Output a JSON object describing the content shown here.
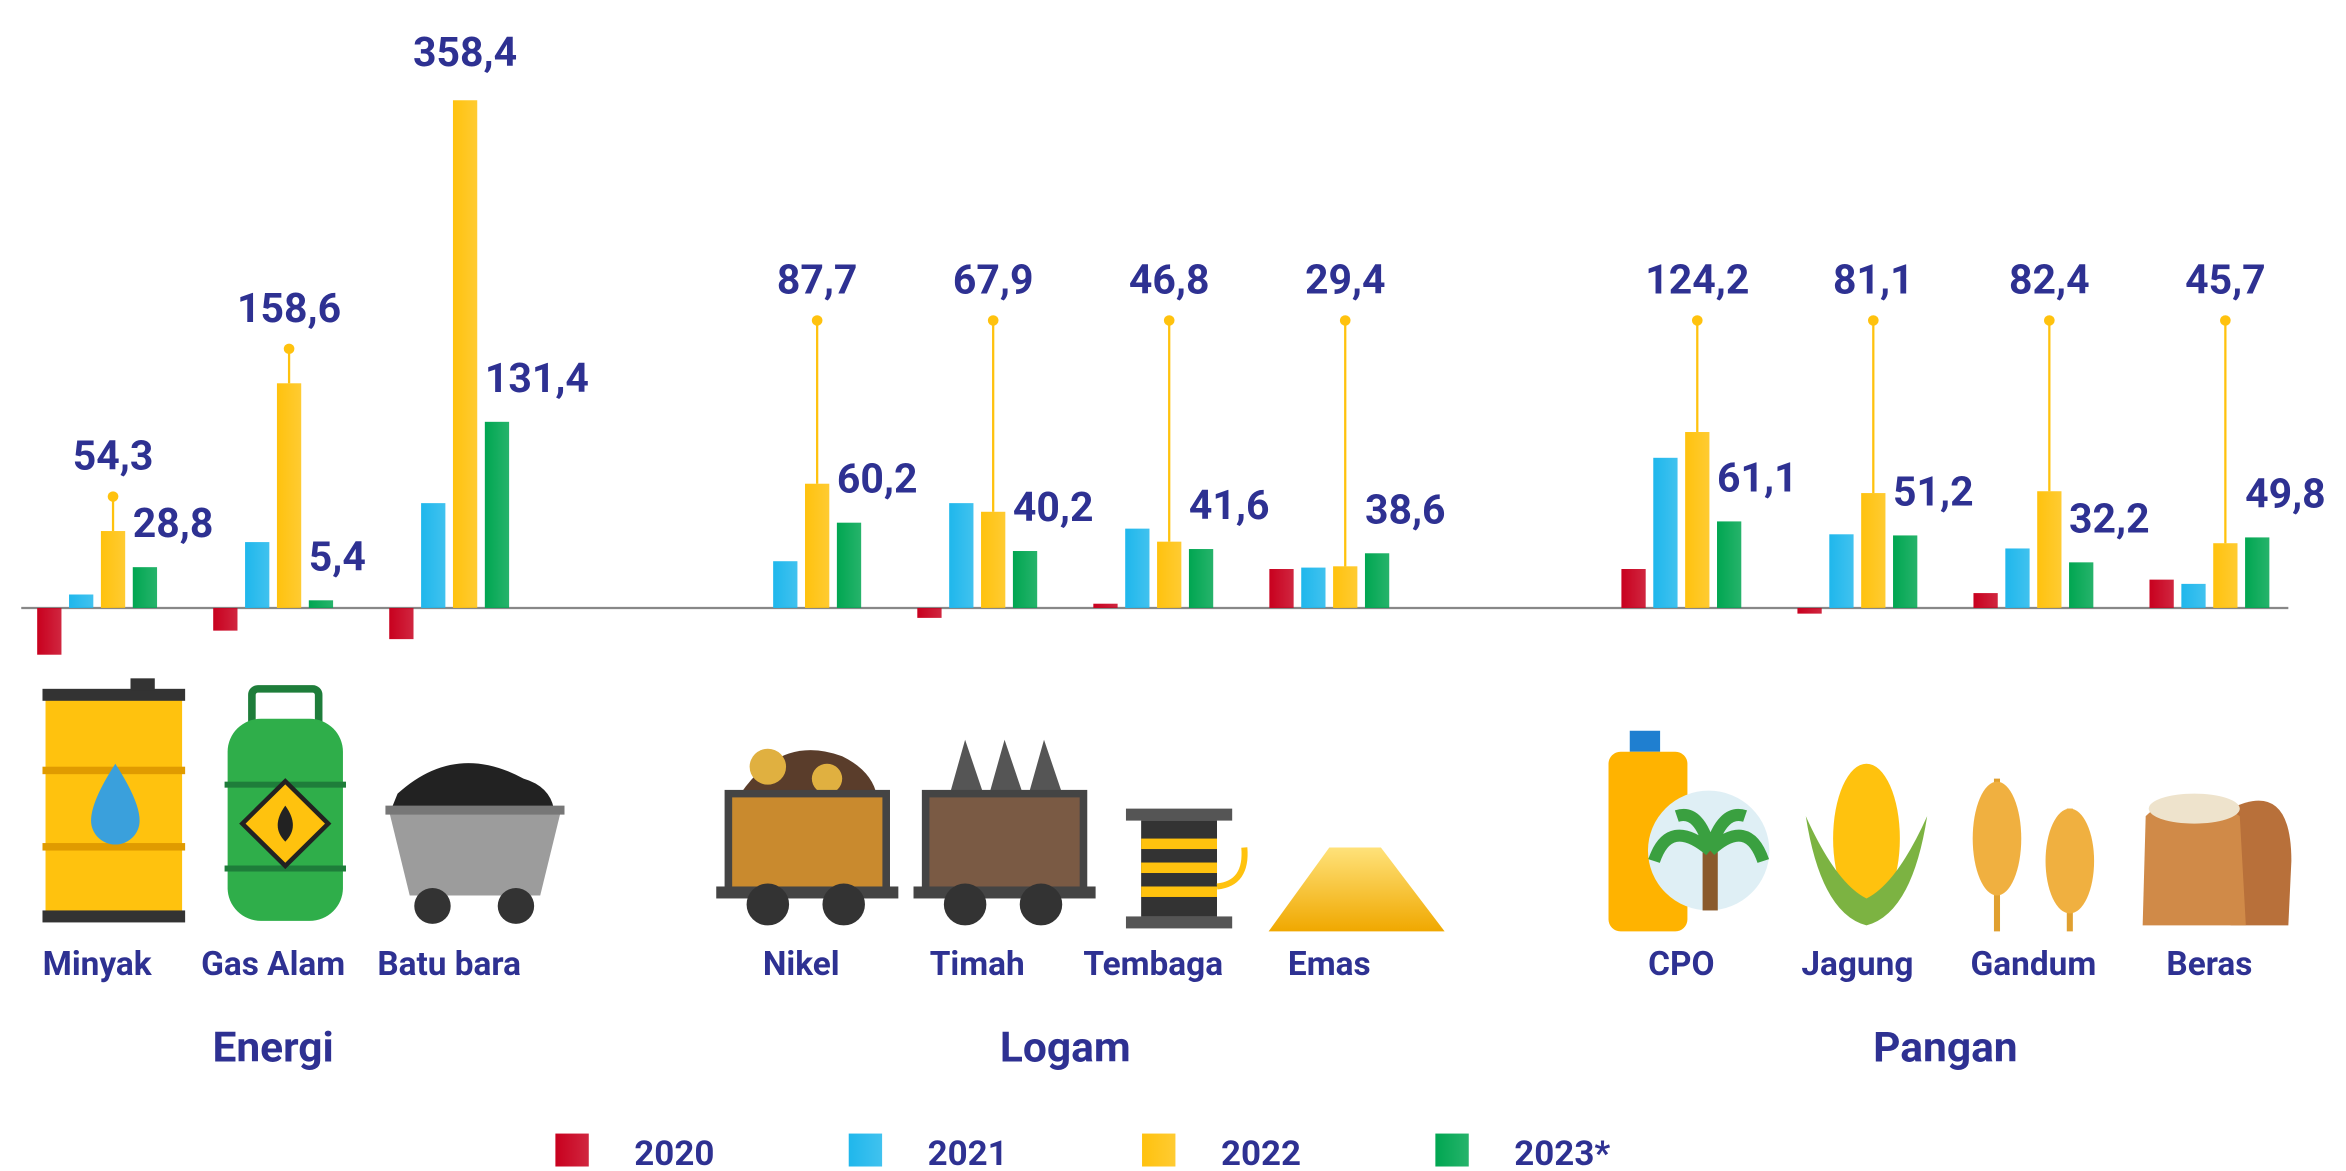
{
  "chart_data": {
    "type": "bar",
    "groups": [
      {
        "name": "Energi",
        "categories": [
          "Minyak",
          "Gas Alam",
          "Batu bara"
        ]
      },
      {
        "name": "Logam",
        "categories": [
          "Nikel",
          "Timah",
          "Tembaga",
          "Emas"
        ]
      },
      {
        "name": "Pangan",
        "categories": [
          "CPO",
          "Jagung",
          "Gandum",
          "Beras"
        ]
      }
    ],
    "series": [
      {
        "name": "2020",
        "color": "#c8001e",
        "values": [
          -33,
          -16,
          -22,
          0,
          -7,
          3,
          27.5,
          27.5,
          -4,
          10.5,
          20
        ]
      },
      {
        "name": "2021",
        "color": "#1fb7ec",
        "values": [
          9.5,
          46.5,
          74,
          33,
          74,
          56,
          28.5,
          106,
          52,
          42,
          17
        ]
      },
      {
        "name": "2022",
        "color": "#ffc20e",
        "values": [
          54.3,
          158.6,
          358.4,
          87.7,
          67.9,
          46.8,
          29.4,
          124.2,
          81.1,
          82.4,
          45.7
        ],
        "value_labels": [
          "54,3",
          "158,6",
          "358,4",
          "87,7",
          "67,9",
          "46,8",
          "29,4",
          "124,2",
          "81,1",
          "82,4",
          "45,7"
        ]
      },
      {
        "name": "2023*",
        "color": "#00a651",
        "values": [
          28.8,
          5.4,
          131.4,
          60.2,
          40.2,
          41.6,
          38.6,
          61.1,
          51.2,
          32.2,
          49.8
        ],
        "value_labels": [
          "28,8",
          "5,4",
          "131,4",
          "60,2",
          "40,2",
          "41,6",
          "38,6",
          "61,1",
          "51,2",
          "32,2",
          "49,8"
        ]
      }
    ]
  }
}
